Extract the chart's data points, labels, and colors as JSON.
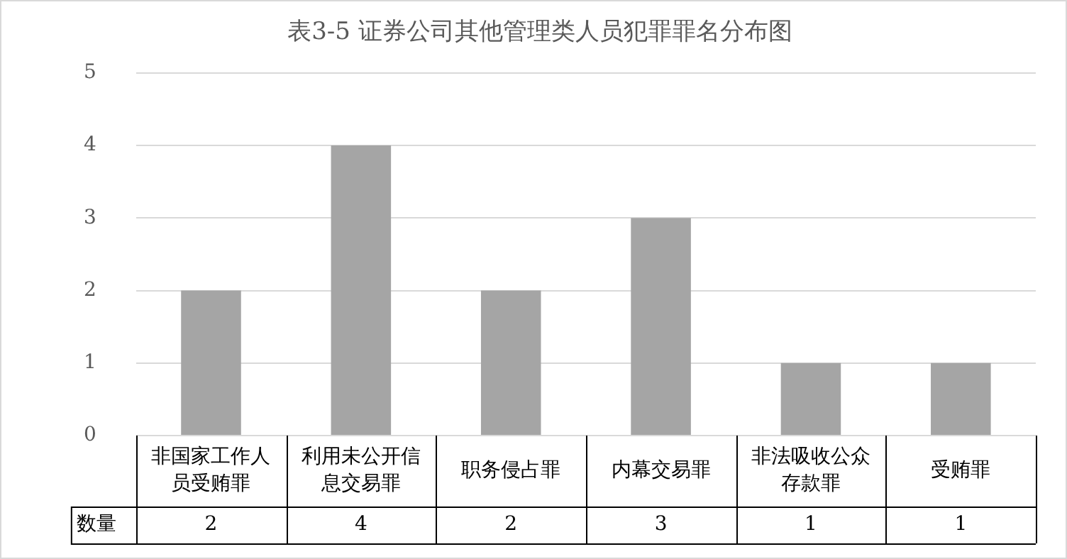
{
  "chart_data": {
    "type": "bar",
    "title": "表3-5 证券公司其他管理类人员犯罪罪名分布图",
    "categories": [
      "非国家工作人员受贿罪",
      "利用未公开信息交易罪",
      "职务侵占罪",
      "内幕交易罪",
      "非法吸收公众存款罪",
      "受贿罪"
    ],
    "series": [
      {
        "name": "数量",
        "color": "#a5a5a5",
        "values": [
          2,
          4,
          2,
          3,
          1,
          1
        ]
      }
    ],
    "ylim": [
      0,
      5
    ],
    "yticks": [
      0,
      1,
      2,
      3,
      4,
      5
    ],
    "grid": "y",
    "data_labels": true,
    "legend": false
  }
}
